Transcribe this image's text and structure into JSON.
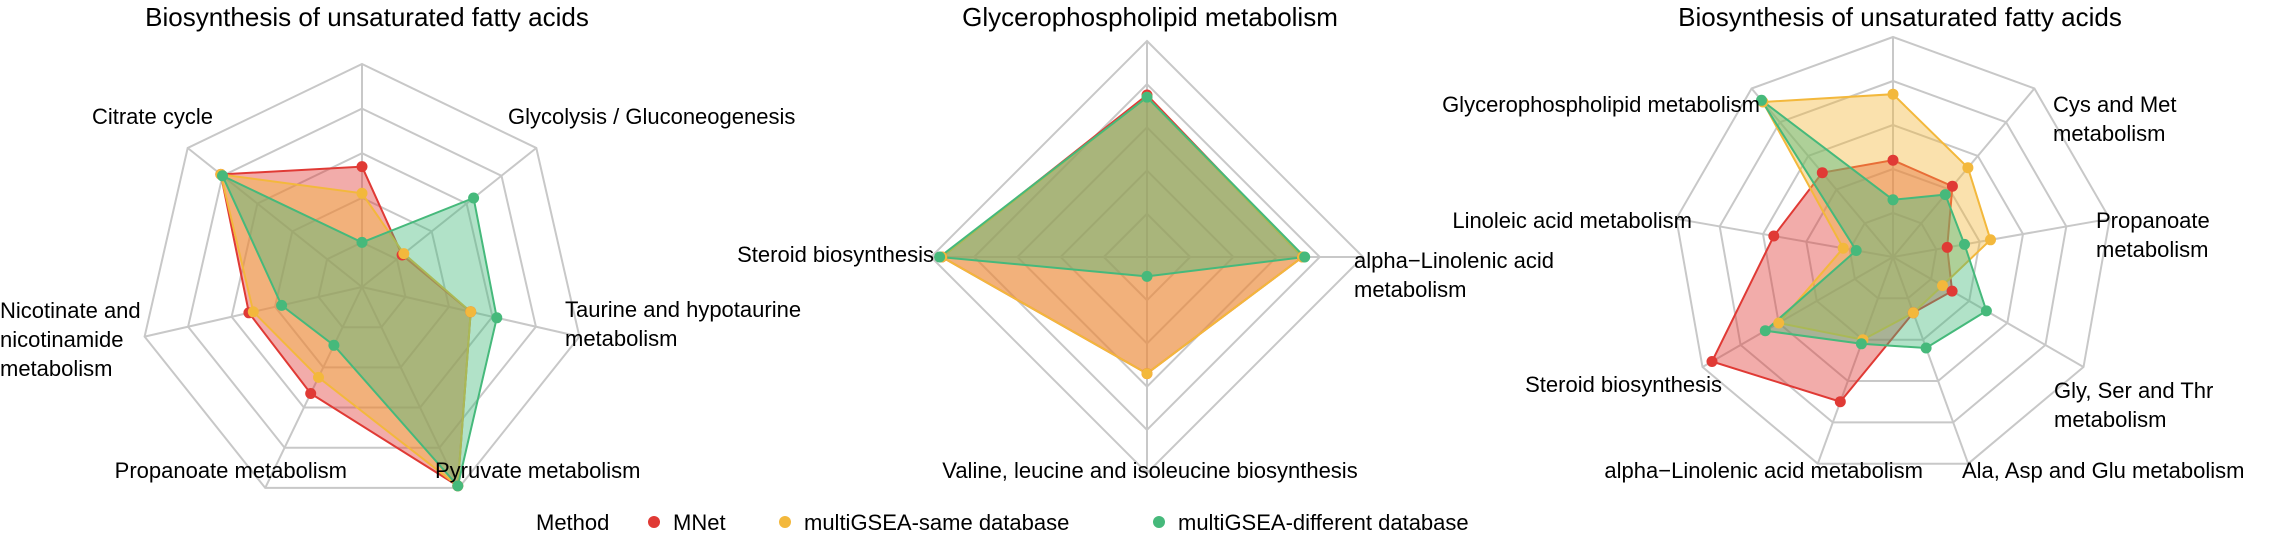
{
  "legend": {
    "title": "Method",
    "items": [
      {
        "label": "MNet",
        "color": "#e03a35"
      },
      {
        "label": "multiGSEA-same database",
        "color": "#f3b83c"
      },
      {
        "label": "multiGSEA-different database",
        "color": "#46b97b"
      }
    ]
  },
  "chart_data": [
    {
      "type": "radar",
      "title": "Biosynthesis of unsaturated fatty acids",
      "axes": [
        "Glycolysis / Gluconeogenesis",
        "Taurine and hypotaurine metabolism",
        "Pyruvate metabolism",
        "Propanoate metabolism",
        "Nicotinate and nicotinamide metabolism",
        "Citrate cycle"
      ],
      "rings": 5,
      "grid": true,
      "series": [
        {
          "name": "MNet",
          "target": 0.54,
          "values": [
            0.23,
            0.5,
            0.99,
            0.53,
            0.52,
            0.81
          ]
        },
        {
          "name": "multiGSEA-same database",
          "target": 0.42,
          "values": [
            0.24,
            0.5,
            0.99,
            0.45,
            0.5,
            0.81
          ]
        },
        {
          "name": "multiGSEA-different database",
          "target": 0.2,
          "values": [
            0.64,
            0.62,
            0.99,
            0.29,
            0.37,
            0.8
          ]
        }
      ]
    },
    {
      "type": "radar",
      "title": "Glycerophospholipid metabolism",
      "axes": [
        "alpha−Linolenic acid metabolism",
        "Valine, leucine and isoleucine biosynthesis",
        "Steroid biosynthesis"
      ],
      "rings": 5,
      "grid": true,
      "series": [
        {
          "name": "MNet",
          "target": 0.75,
          "values": [
            0.72,
            0.54,
            0.95
          ]
        },
        {
          "name": "multiGSEA-same database",
          "target": 0.74,
          "values": [
            0.72,
            0.54,
            0.95
          ]
        },
        {
          "name": "multiGSEA-different database",
          "target": 0.74,
          "values": [
            0.73,
            0.09,
            0.96
          ]
        }
      ]
    },
    {
      "type": "radar",
      "title": "Biosynthesis of unsaturated fatty acids",
      "axes": [
        "Cys and Met metabolism",
        "Propanoate metabolism",
        "Gly, Ser and Thr metabolism",
        "Ala, Asp and Glu metabolism",
        "alpha−Linolenic acid metabolism",
        "Steroid biosynthesis",
        "Linoleic acid metabolism",
        "Glycerophospholipid metabolism"
      ],
      "rings": 5,
      "grid": true,
      "series": [
        {
          "name": "MNet",
          "target": 0.44,
          "values": [
            0.42,
            0.25,
            0.31,
            0.27,
            0.7,
            0.95,
            0.55,
            0.5
          ]
        },
        {
          "name": "multiGSEA-same database",
          "target": 0.74,
          "values": [
            0.53,
            0.45,
            0.26,
            0.27,
            0.4,
            0.6,
            0.23,
            0.92
          ]
        },
        {
          "name": "multiGSEA-different database",
          "target": 0.26,
          "values": [
            0.37,
            0.33,
            0.49,
            0.44,
            0.42,
            0.67,
            0.17,
            0.93
          ]
        }
      ]
    }
  ]
}
